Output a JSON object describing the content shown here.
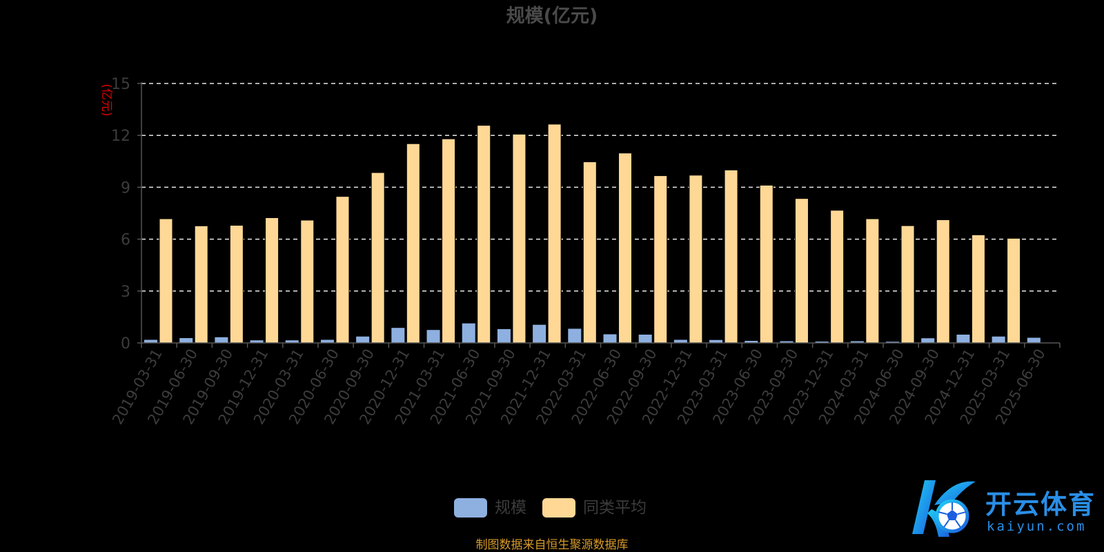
{
  "chart_data": {
    "type": "bar",
    "title": "规模(亿元)",
    "ylabel": "(亿元)",
    "ylim": [
      0,
      15
    ],
    "yticks": [
      0,
      3,
      6,
      9,
      12,
      15
    ],
    "grid": true,
    "legend_position": "bottom-center",
    "categories": [
      "2019-03-31",
      "2019-06-30",
      "2019-09-30",
      "2019-12-31",
      "2020-03-31",
      "2020-06-30",
      "2020-09-30",
      "2020-12-31",
      "2021-03-31",
      "2021-06-30",
      "2021-09-30",
      "2021-12-31",
      "2022-03-31",
      "2022-06-30",
      "2022-09-30",
      "2022-12-31",
      "2023-03-31",
      "2023-06-30",
      "2023-09-30",
      "2023-12-31",
      "2024-03-31",
      "2024-06-30",
      "2024-09-30",
      "2024-12-31",
      "2025-03-31",
      "2025-06-30"
    ],
    "series": [
      {
        "name": "规模",
        "color": "#8eb0e0",
        "values": [
          0.18,
          0.28,
          0.33,
          0.15,
          0.15,
          0.18,
          0.37,
          0.87,
          0.75,
          1.13,
          0.8,
          1.05,
          0.82,
          0.5,
          0.48,
          0.18,
          0.17,
          0.12,
          0.1,
          0.08,
          0.1,
          0.07,
          0.27,
          0.48,
          0.37,
          0.3
        ]
      },
      {
        "name": "同类平均",
        "color": "#ffd896",
        "values": [
          7.18,
          6.77,
          6.8,
          7.24,
          7.1,
          8.47,
          9.85,
          11.52,
          11.8,
          12.58,
          12.07,
          12.65,
          10.47,
          10.98,
          9.67,
          9.7,
          10.0,
          9.12,
          8.35,
          7.67,
          7.18,
          6.78,
          7.12,
          6.25,
          6.05,
          null
        ]
      }
    ]
  },
  "footer": {
    "source_text": "制图数据来自恒生聚源数据库"
  },
  "logo": {
    "brand_cn": "开云体育",
    "brand_en": "kaiyun.com",
    "icon": "kaiyun-soccer-k-logo-icon"
  }
}
